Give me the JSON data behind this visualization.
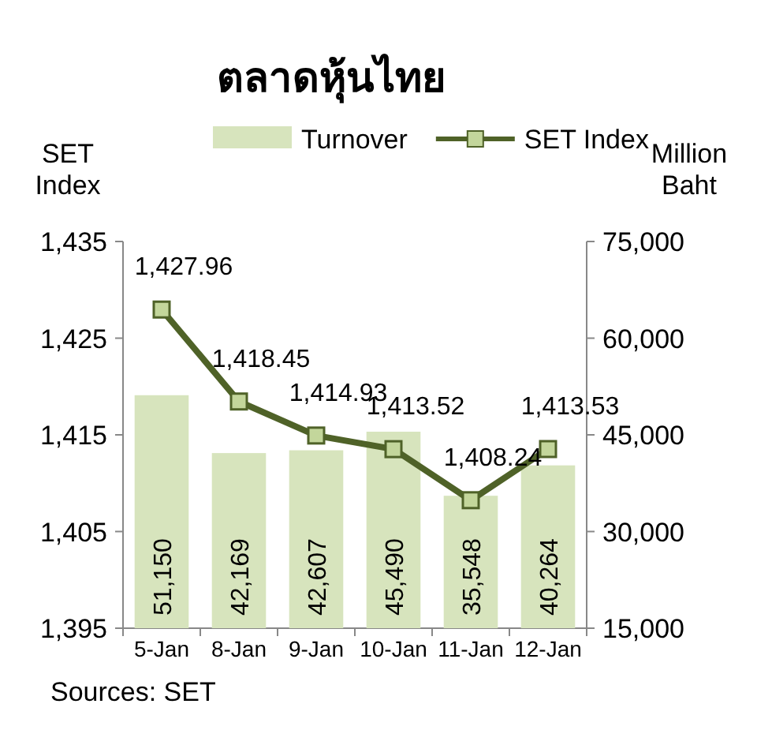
{
  "chart_data": {
    "type": "bar",
    "title": "ตลาดหุ้นไทย",
    "ylabel": "SET Index",
    "y2label": "Million Baht",
    "categories": [
      "5-Jan",
      "8-Jan",
      "9-Jan",
      "10-Jan",
      "11-Jan",
      "12-Jan"
    ],
    "series": [
      {
        "name": "Turnover",
        "axis": "y2",
        "color": "#d7e4bd",
        "values": [
          51150,
          42169,
          42607,
          45490,
          35548,
          40264
        ],
        "value_labels": [
          "51,150",
          "42,169",
          "42,607",
          "45,490",
          "35,548",
          "40,264"
        ]
      },
      {
        "name": "SET Index",
        "type": "line",
        "axis": "y",
        "color": "#4f6228",
        "marker": "square",
        "values": [
          1427.96,
          1418.45,
          1414.93,
          1413.52,
          1408.24,
          1413.53
        ],
        "value_labels": [
          "1,427.96",
          "1,418.45",
          "1,414.93",
          "1,413.52",
          "1,408.24",
          "1,413.53"
        ]
      }
    ],
    "ylim": [
      1395,
      1435
    ],
    "yticks": [
      {
        "value": 1395,
        "label": "1,395"
      },
      {
        "value": 1405,
        "label": "1,405"
      },
      {
        "value": 1415,
        "label": "1,415"
      },
      {
        "value": 1425,
        "label": "1,425"
      },
      {
        "value": 1435,
        "label": "1,435"
      }
    ],
    "y2lim": [
      15000,
      75000
    ],
    "y2ticks": [
      {
        "value": 15000,
        "label": "15,000"
      },
      {
        "value": 30000,
        "label": "30,000"
      },
      {
        "value": 45000,
        "label": "45,000"
      },
      {
        "value": 60000,
        "label": "60,000"
      },
      {
        "value": 75000,
        "label": "75,000"
      }
    ],
    "legend": "top",
    "grid": false,
    "annotations": [
      "Sources: SET"
    ]
  }
}
